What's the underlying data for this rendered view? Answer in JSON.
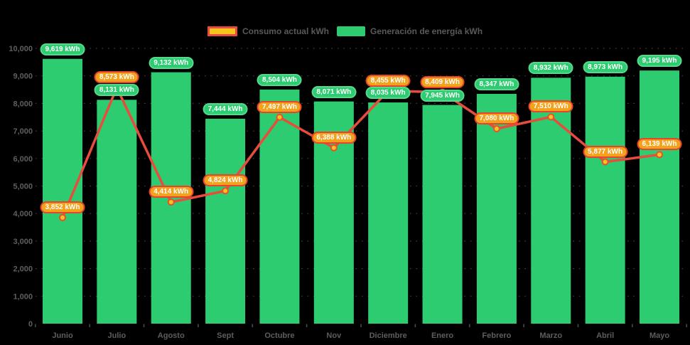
{
  "legend": {
    "consumo_label": "Consumo actual kWh",
    "generacion_label": "Generación de energía kWh"
  },
  "colors": {
    "background": "#000000",
    "bar": "#2ecc71",
    "bar_pill_border": "#55d98c",
    "line": "#e74c3c",
    "marker_fill": "#f7c41f",
    "marker_border": "#e8502f",
    "consumo_pill_bg": "#f2a21c",
    "consumo_pill_border": "#e8432c",
    "axis_text": "#5e5e5e",
    "legend_text": "#595959",
    "grid": "#505052",
    "tick": "#4b4b4d"
  },
  "chart_data": {
    "type": "bar",
    "title": "",
    "xlabel": "",
    "ylabel": "",
    "categories": [
      "Junio",
      "Julio",
      "Agosto",
      "Sept",
      "Octubre",
      "Nov",
      "Diciembre",
      "Enero",
      "Febrero",
      "Marzo",
      "Abril",
      "Mayo"
    ],
    "series": [
      {
        "name": "Generación de energía kWh",
        "type": "bar",
        "color": "#2ecc71",
        "values": [
          9619,
          8131,
          9132,
          7444,
          8504,
          8071,
          8035,
          7945,
          8347,
          8932,
          8973,
          9195
        ]
      },
      {
        "name": "Consumo actual kWh",
        "type": "line",
        "color": "#e74c3c",
        "values": [
          3852,
          8573,
          4414,
          4824,
          7497,
          6388,
          8455,
          8409,
          7080,
          7510,
          5877,
          6139
        ]
      }
    ],
    "value_suffix": " kWh",
    "data_labels": true,
    "ylim": [
      0,
      10000
    ],
    "y_tick_step": 1000,
    "y_tick_labels": [
      "0",
      "1,000",
      "2,000",
      "3,000",
      "4,000",
      "5,000",
      "6,000",
      "7,000",
      "8,000",
      "9,000",
      "10,000"
    ],
    "grid": "dotted-horizontal",
    "legend_position": "top-center"
  }
}
